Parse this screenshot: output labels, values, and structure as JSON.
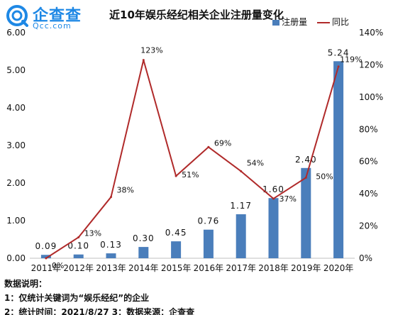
{
  "logo": {
    "cn": "企查查",
    "en": "Qcc.com"
  },
  "legend": {
    "bar_label": "注册量",
    "line_label": "同比"
  },
  "notes": {
    "heading": "数据说明：",
    "line1": "1：仅统计关键词为“娱乐经纪”的企业",
    "line2": "2：统计时间：2021/8/27 3：数据来源：企查查"
  },
  "colors": {
    "bar": "#4a7ebb",
    "line": "#b02a2a",
    "logo": "#1e88e5"
  },
  "chart_data": {
    "type": "bar",
    "title": "近10年娱乐经纪相关企业注册量变化",
    "categories": [
      "2011年",
      "2012年",
      "2013年",
      "2014年",
      "2015年",
      "2016年",
      "2017年",
      "2018年",
      "2019年",
      "2020年"
    ],
    "series": [
      {
        "name": "注册量",
        "type": "bar",
        "axis": "left",
        "values": [
          0.09,
          0.1,
          0.13,
          0.3,
          0.45,
          0.76,
          1.17,
          1.6,
          2.4,
          5.24
        ],
        "labels": [
          "0.09",
          "0.10",
          "0.13",
          "0.30",
          "0.45",
          "0.76",
          "1.17",
          "1.60",
          "2.40",
          "5.24"
        ]
      },
      {
        "name": "同比",
        "type": "line",
        "axis": "right",
        "values": [
          0,
          13,
          38,
          123,
          51,
          69,
          54,
          37,
          50,
          119
        ],
        "labels": [
          "0%",
          "13%",
          "38%",
          "123%",
          "51%",
          "69%",
          "54%",
          "37%",
          "50%",
          "119%"
        ]
      }
    ],
    "y_left": {
      "ylim": [
        0,
        6
      ],
      "ticks": [
        "0.00",
        "1.00",
        "2.00",
        "3.00",
        "4.00",
        "5.00",
        "6.00"
      ]
    },
    "y_right": {
      "ylim": [
        0,
        140
      ],
      "ticks": [
        "0%",
        "20%",
        "40%",
        "60%",
        "80%",
        "100%",
        "120%",
        "140%"
      ]
    },
    "grid": "none",
    "legend_position": "top-right"
  }
}
